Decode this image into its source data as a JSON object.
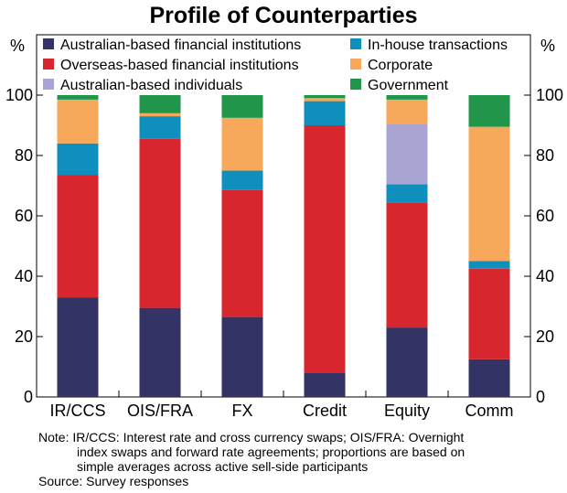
{
  "chart_data": {
    "type": "bar",
    "stacked": true,
    "title": "Profile of Counterparties",
    "ylabel_left": "%",
    "ylabel_right": "%",
    "ylim": [
      0,
      100
    ],
    "yticks": [
      0,
      20,
      40,
      60,
      80,
      100
    ],
    "grid": false,
    "legend_position": "top",
    "categories": [
      "IR/CCS",
      "OIS/FRA",
      "FX",
      "Credit",
      "Equity",
      "Comm"
    ],
    "series": [
      {
        "name": "Australian-based financial institutions",
        "color": "#333366",
        "values": [
          33,
          29.5,
          26.5,
          8,
          23,
          12.5
        ]
      },
      {
        "name": "Overseas-based financial institutions",
        "color": "#d7262e",
        "values": [
          40.5,
          56,
          42,
          82,
          41.5,
          30
        ]
      },
      {
        "name": "In-house transactions",
        "color": "#0f8fbd",
        "values": [
          10.5,
          7.5,
          6.5,
          8,
          6,
          2.5
        ]
      },
      {
        "name": "Australian-based individuals",
        "color": "#a9a5d2",
        "values": [
          0,
          0,
          0,
          0,
          20,
          0
        ]
      },
      {
        "name": "Corporate",
        "color": "#f7a85a",
        "values": [
          14.5,
          1,
          17.5,
          1,
          8,
          44.5
        ]
      },
      {
        "name": "Government",
        "color": "#21954a",
        "values": [
          1.5,
          6,
          7.5,
          1,
          1.5,
          10.5
        ]
      }
    ],
    "legend_order": [
      "Australian-based financial institutions",
      "In-house transactions",
      "Overseas-based financial institutions",
      "Corporate",
      "Australian-based individuals",
      "Government"
    ]
  },
  "notes": {
    "line1": "Note: IR/CCS: Interest rate and cross currency swaps; OIS/FRA: Overnight",
    "line2": "index swaps and forward rate agreements; proportions are based on",
    "line3": "simple averages across active sell-side participants",
    "source": "Source: Survey responses"
  }
}
